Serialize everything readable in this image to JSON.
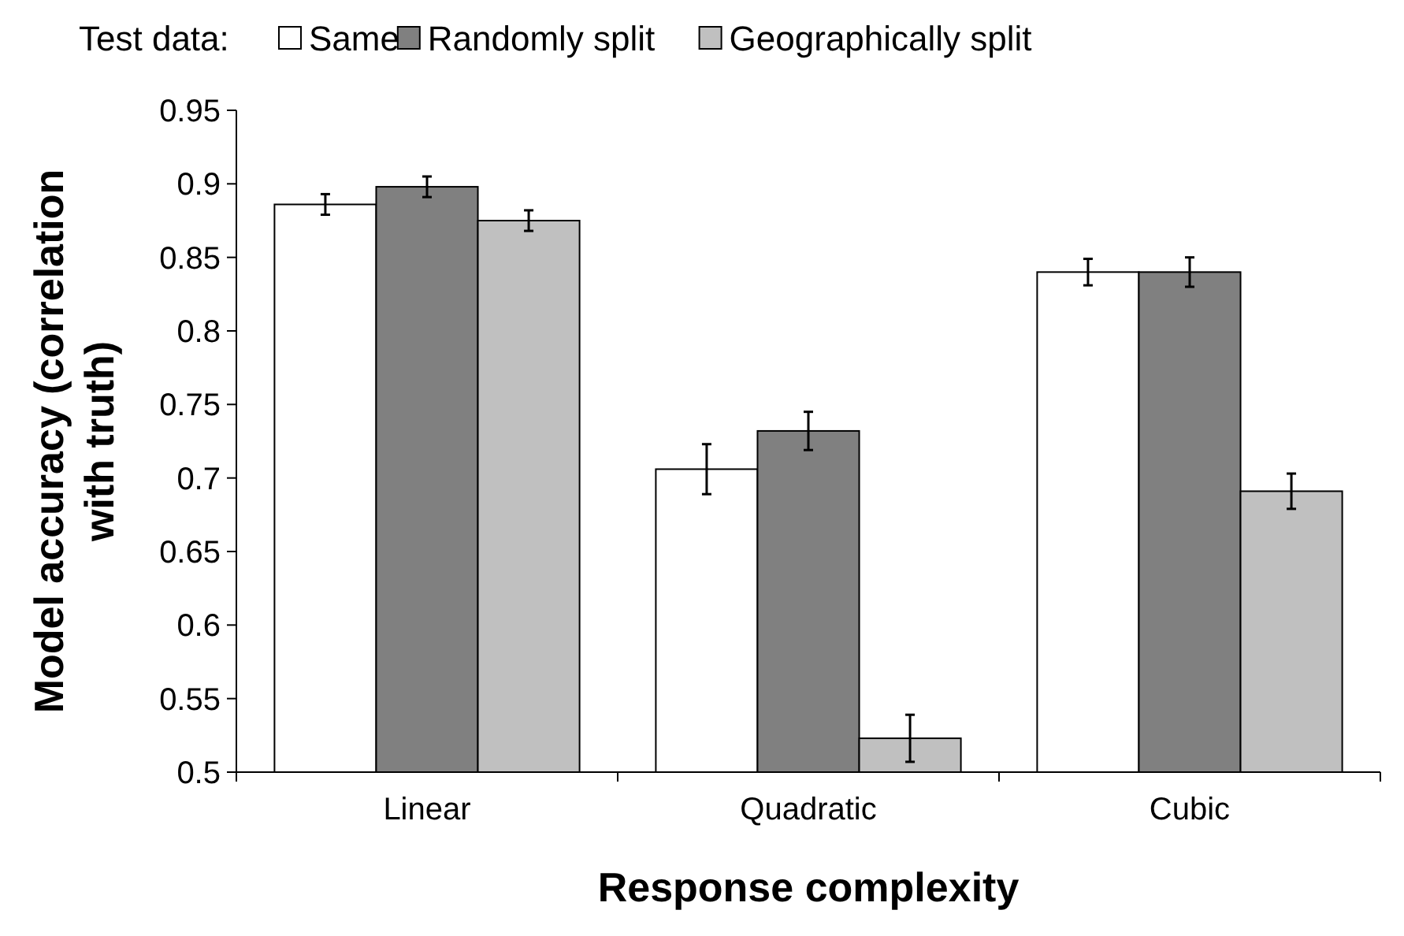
{
  "chart_data": {
    "type": "bar",
    "xlabel": "Response complexity",
    "ylabel": "Model accuracy (correlation with truth)",
    "legend_title": "Test data:",
    "legend": "top",
    "categories": [
      "Linear",
      "Quadratic",
      "Cubic"
    ],
    "ylim": [
      0.5,
      0.95
    ],
    "yticks": [
      0.5,
      0.55,
      0.6,
      0.65,
      0.7,
      0.75,
      0.8,
      0.85,
      0.9,
      0.95
    ],
    "series": [
      {
        "name": "Same",
        "color": "#ffffff",
        "values": [
          0.886,
          0.706,
          0.84
        ],
        "errors": [
          0.007,
          0.017,
          0.009
        ]
      },
      {
        "name": "Randomly split",
        "color": "#808080",
        "values": [
          0.898,
          0.732,
          0.84
        ],
        "errors": [
          0.007,
          0.013,
          0.01
        ]
      },
      {
        "name": "Geographically split",
        "color": "#c0c0c0",
        "values": [
          0.875,
          0.523,
          0.691
        ],
        "errors": [
          0.007,
          0.016,
          0.012
        ]
      }
    ]
  }
}
